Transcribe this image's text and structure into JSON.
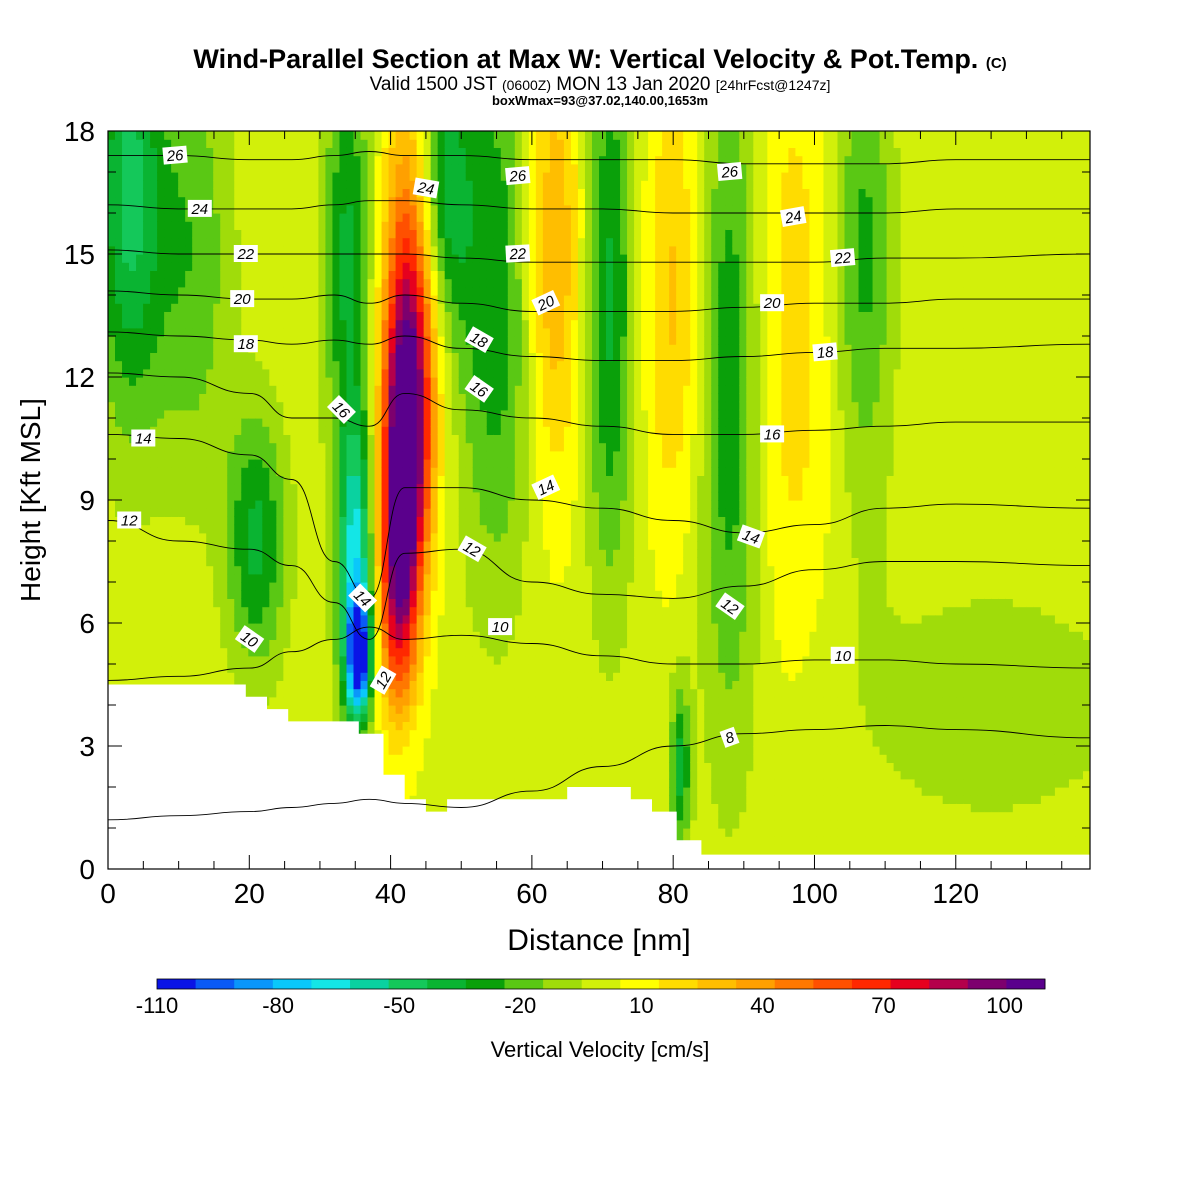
{
  "chart_data": {
    "type": "heatmap",
    "title": "Wind-Parallel Section at Max W: Vertical Velocity & Pot.Temp.",
    "title_mark": "(C)",
    "subtitle_parts": [
      "Valid 1500 JST",
      "(0600Z)",
      "MON 13 Jan 2020",
      "[24hrFcst@1247z]"
    ],
    "annotation": "boxWmax=93@37.02,140.00,1653m",
    "xlabel": "Distance [nm]",
    "ylabel": "Height [Kft MSL]",
    "xlim": [
      0,
      139
    ],
    "ylim": [
      0,
      18
    ],
    "xticks": [
      0,
      20,
      40,
      60,
      80,
      100,
      120
    ],
    "yticks": [
      0,
      3,
      6,
      9,
      12,
      15,
      18
    ],
    "colorbar": {
      "label": "Vertical Velocity [cm/s]",
      "ticks": [
        -110,
        -80,
        -50,
        -20,
        10,
        40,
        70,
        100
      ],
      "levels": [
        -110,
        -100,
        -90,
        -80,
        -70,
        -60,
        -50,
        -40,
        -30,
        -20,
        -10,
        0,
        10,
        20,
        30,
        40,
        50,
        60,
        70,
        80,
        90,
        100,
        110
      ],
      "colors": [
        "#0a14e6",
        "#0a5af5",
        "#0a96fa",
        "#0ac8fa",
        "#14e6e6",
        "#0ad2a0",
        "#14c85a",
        "#0ab432",
        "#0aa00a",
        "#5ac814",
        "#a0dc0a",
        "#d2f00a",
        "#ffff00",
        "#ffdc00",
        "#ffbe00",
        "#ffa000",
        "#ff7800",
        "#ff5000",
        "#ff2800",
        "#e6001e",
        "#b4004b",
        "#7d006e",
        "#5a008c"
      ]
    },
    "velocity_features": [
      {
        "x": 3,
        "z": 16.5,
        "w": -50,
        "sx": 3.5,
        "sz": 4
      },
      {
        "x": 12,
        "z": 15,
        "w": -25,
        "sx": 4,
        "sz": 4
      },
      {
        "x": 21,
        "z": 8,
        "w": -40,
        "sx": 3,
        "sz": 2.2
      },
      {
        "x": 35,
        "z": 7.5,
        "w": -70,
        "sx": 1.8,
        "sz": 2.5
      },
      {
        "x": 35.5,
        "z": 5.2,
        "w": -100,
        "sx": 1.2,
        "sz": 1
      },
      {
        "x": 34,
        "z": 15,
        "w": -40,
        "sx": 2.5,
        "sz": 3.5
      },
      {
        "x": 42,
        "z": 10,
        "w": 100,
        "sx": 2.2,
        "sz": 2.5
      },
      {
        "x": 43,
        "z": 14,
        "w": 75,
        "sx": 2.8,
        "sz": 3.5
      },
      {
        "x": 41,
        "z": 6.5,
        "w": 65,
        "sx": 2,
        "sz": 2
      },
      {
        "x": 47,
        "z": 16.5,
        "w": -50,
        "sx": 3,
        "sz": 2.5
      },
      {
        "x": 55,
        "z": 14,
        "w": -35,
        "sx": 4,
        "sz": 5
      },
      {
        "x": 63,
        "z": 15,
        "w": 35,
        "sx": 3,
        "sz": 4
      },
      {
        "x": 71,
        "z": 14,
        "w": -40,
        "sx": 2.5,
        "sz": 5
      },
      {
        "x": 80,
        "z": 14,
        "w": 25,
        "sx": 3,
        "sz": 4
      },
      {
        "x": 88,
        "z": 12,
        "w": -35,
        "sx": 3,
        "sz": 6
      },
      {
        "x": 81,
        "z": 2.5,
        "w": -40,
        "sx": 1,
        "sz": 1.5
      },
      {
        "x": 97,
        "z": 13,
        "w": 18,
        "sx": 4,
        "sz": 6
      },
      {
        "x": 107,
        "z": 15,
        "w": -30,
        "sx": 3,
        "sz": 4
      },
      {
        "x": 125,
        "z": 4,
        "w": -10,
        "sx": 20,
        "sz": 3
      }
    ],
    "terrain": [
      [
        0,
        4.5
      ],
      [
        19.5,
        4.5
      ],
      [
        19.5,
        4.2
      ],
      [
        22.5,
        4.2
      ],
      [
        22.5,
        3.9
      ],
      [
        25.5,
        3.9
      ],
      [
        25.5,
        3.6
      ],
      [
        35.5,
        3.6
      ],
      [
        35.5,
        3.3
      ],
      [
        39,
        3.3
      ],
      [
        39,
        2.3
      ],
      [
        42,
        2.3
      ],
      [
        42,
        1.7
      ],
      [
        45,
        1.7
      ],
      [
        45,
        1.4
      ],
      [
        48,
        1.4
      ],
      [
        48,
        1.7
      ],
      [
        65,
        1.7
      ],
      [
        65,
        2
      ],
      [
        74,
        2
      ],
      [
        74,
        1.7
      ],
      [
        77,
        1.7
      ],
      [
        77,
        1.4
      ],
      [
        80.5,
        1.4
      ],
      [
        80.5,
        0.7
      ],
      [
        84,
        0.7
      ],
      [
        84,
        0.35
      ],
      [
        139,
        0.35
      ]
    ],
    "theta_contours": [
      {
        "value": 8,
        "y": [
          1.2,
          1.3,
          1.4,
          1.5,
          1.6,
          1.7,
          1.6,
          1.5,
          1.9,
          2.5,
          3.0,
          3.3,
          3.4,
          3.5,
          3.4,
          3.2
        ]
      },
      {
        "value": 10,
        "y": [
          4.6,
          4.7,
          4.9,
          5.3,
          5.6,
          5.9,
          5.6,
          5.7,
          5.5,
          5.2,
          5.0,
          5.0,
          5.1,
          5.1,
          5.0,
          4.9
        ]
      },
      {
        "value": 12,
        "y": [
          8.5,
          8.0,
          7.8,
          7.4,
          6.5,
          5.6,
          7.7,
          7.8,
          7.0,
          6.7,
          6.6,
          6.9,
          7.3,
          7.5,
          7.5,
          7.4
        ]
      },
      {
        "value": 14,
        "y": [
          10.6,
          10.5,
          10.1,
          9.5,
          7.5,
          6.6,
          9.3,
          9.3,
          9.0,
          8.8,
          8.5,
          8.2,
          8.4,
          8.8,
          8.9,
          8.8
        ]
      },
      {
        "value": 16,
        "y": [
          12.1,
          12.0,
          11.6,
          11.0,
          11.0,
          10.8,
          11.6,
          11.2,
          11.0,
          10.8,
          10.6,
          10.6,
          10.7,
          10.8,
          10.9,
          10.9
        ]
      },
      {
        "value": 18,
        "y": [
          13.1,
          13.0,
          12.9,
          12.8,
          12.9,
          12.8,
          13.0,
          12.7,
          12.5,
          12.4,
          12.4,
          12.5,
          12.6,
          12.7,
          12.7,
          12.8
        ]
      },
      {
        "value": 20,
        "y": [
          14.1,
          14.0,
          13.9,
          13.9,
          14.0,
          13.8,
          14.0,
          13.8,
          13.6,
          13.6,
          13.6,
          13.7,
          13.8,
          13.8,
          13.9,
          13.9
        ]
      },
      {
        "value": 22,
        "y": [
          15.1,
          15.0,
          15.0,
          15.0,
          15.0,
          15.0,
          15.0,
          14.9,
          14.8,
          14.8,
          14.8,
          14.8,
          14.8,
          14.9,
          14.9,
          15.0
        ]
      },
      {
        "value": 24,
        "y": [
          16.2,
          16.1,
          16.1,
          16.1,
          16.2,
          16.3,
          16.3,
          16.2,
          16.1,
          16.1,
          16.0,
          16.0,
          16.0,
          16.0,
          16.1,
          16.1
        ]
      },
      {
        "value": 26,
        "y": [
          17.4,
          17.4,
          17.3,
          17.3,
          17.4,
          17.5,
          17.4,
          17.4,
          17.3,
          17.3,
          17.3,
          17.2,
          17.2,
          17.2,
          17.3,
          17.3
        ]
      }
    ],
    "contour_x": [
      0,
      10,
      20,
      26,
      32,
      37,
      42,
      50,
      60,
      70,
      80,
      90,
      100,
      110,
      120,
      139
    ],
    "contour_labels": [
      {
        "text": "26",
        "x": 9.5,
        "z": 17.4,
        "angle": -5
      },
      {
        "text": "24",
        "x": 13,
        "z": 16.1,
        "angle": 0
      },
      {
        "text": "22",
        "x": 19.5,
        "z": 15.0,
        "angle": 0
      },
      {
        "text": "20",
        "x": 19,
        "z": 13.9,
        "angle": 0
      },
      {
        "text": "18",
        "x": 19.5,
        "z": 12.8,
        "angle": 0
      },
      {
        "text": "14",
        "x": 5,
        "z": 10.5,
        "angle": 0
      },
      {
        "text": "12",
        "x": 3,
        "z": 8.5,
        "angle": 0
      },
      {
        "text": "10",
        "x": 20,
        "z": 5.6,
        "angle": 35
      },
      {
        "text": "16",
        "x": 33,
        "z": 11.2,
        "angle": 45
      },
      {
        "text": "14",
        "x": 36,
        "z": 6.6,
        "angle": 45
      },
      {
        "text": "12",
        "x": 39,
        "z": 4.6,
        "angle": -60
      },
      {
        "text": "24",
        "x": 45,
        "z": 16.6,
        "angle": 10
      },
      {
        "text": "26",
        "x": 58,
        "z": 16.9,
        "angle": -5
      },
      {
        "text": "22",
        "x": 58,
        "z": 15.0,
        "angle": -3
      },
      {
        "text": "20",
        "x": 62,
        "z": 13.8,
        "angle": -25
      },
      {
        "text": "18",
        "x": 52.5,
        "z": 12.9,
        "angle": 30
      },
      {
        "text": "16",
        "x": 52.5,
        "z": 11.7,
        "angle": 35
      },
      {
        "text": "14",
        "x": 62,
        "z": 9.3,
        "angle": -25
      },
      {
        "text": "12",
        "x": 51.5,
        "z": 7.8,
        "angle": 30
      },
      {
        "text": "10",
        "x": 55.5,
        "z": 5.9,
        "angle": 0
      },
      {
        "text": "26",
        "x": 88,
        "z": 17.0,
        "angle": -5
      },
      {
        "text": "24",
        "x": 97,
        "z": 15.9,
        "angle": -10
      },
      {
        "text": "22",
        "x": 104,
        "z": 14.9,
        "angle": -5
      },
      {
        "text": "20",
        "x": 94,
        "z": 13.8,
        "angle": 0
      },
      {
        "text": "18",
        "x": 101.5,
        "z": 12.6,
        "angle": -5
      },
      {
        "text": "16",
        "x": 94,
        "z": 10.6,
        "angle": 0
      },
      {
        "text": "14",
        "x": 91,
        "z": 8.1,
        "angle": 20
      },
      {
        "text": "12",
        "x": 88,
        "z": 6.4,
        "angle": 35
      },
      {
        "text": "10",
        "x": 104,
        "z": 5.2,
        "angle": 0
      },
      {
        "text": "8",
        "x": 88,
        "z": 3.2,
        "angle": -20
      }
    ]
  }
}
